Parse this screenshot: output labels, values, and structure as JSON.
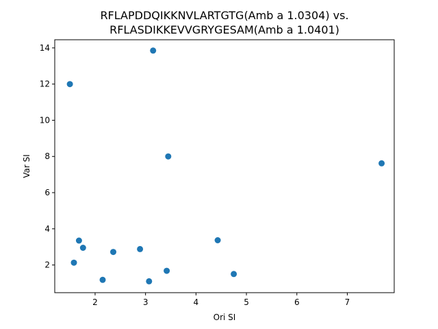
{
  "chart_data": {
    "type": "scatter",
    "title_lines": [
      "RFLAPDDQIKKNVLARTGTG(Amb a 1.0304) vs.",
      "RFLASDIKKEVVGRYGESAM(Amb a 1.0401)"
    ],
    "xlabel": "Ori SI",
    "ylabel": "Var SI",
    "xlim": [
      1.2,
      7.93
    ],
    "ylim": [
      0.47,
      14.45
    ],
    "xticks": [
      2,
      3,
      4,
      5,
      6,
      7
    ],
    "yticks": [
      2,
      4,
      6,
      8,
      10,
      12,
      14
    ],
    "grid": false,
    "color": "#1f77b4",
    "points": [
      {
        "x": 3.15,
        "y": 13.85
      },
      {
        "x": 1.5,
        "y": 12.0
      },
      {
        "x": 3.45,
        "y": 8.0
      },
      {
        "x": 7.68,
        "y": 7.62
      },
      {
        "x": 1.68,
        "y": 3.35
      },
      {
        "x": 4.43,
        "y": 3.37
      },
      {
        "x": 1.76,
        "y": 2.95
      },
      {
        "x": 2.36,
        "y": 2.72
      },
      {
        "x": 2.89,
        "y": 2.88
      },
      {
        "x": 1.58,
        "y": 2.13
      },
      {
        "x": 3.42,
        "y": 1.68
      },
      {
        "x": 4.75,
        "y": 1.5
      },
      {
        "x": 2.15,
        "y": 1.18
      },
      {
        "x": 3.07,
        "y": 1.1
      }
    ]
  }
}
